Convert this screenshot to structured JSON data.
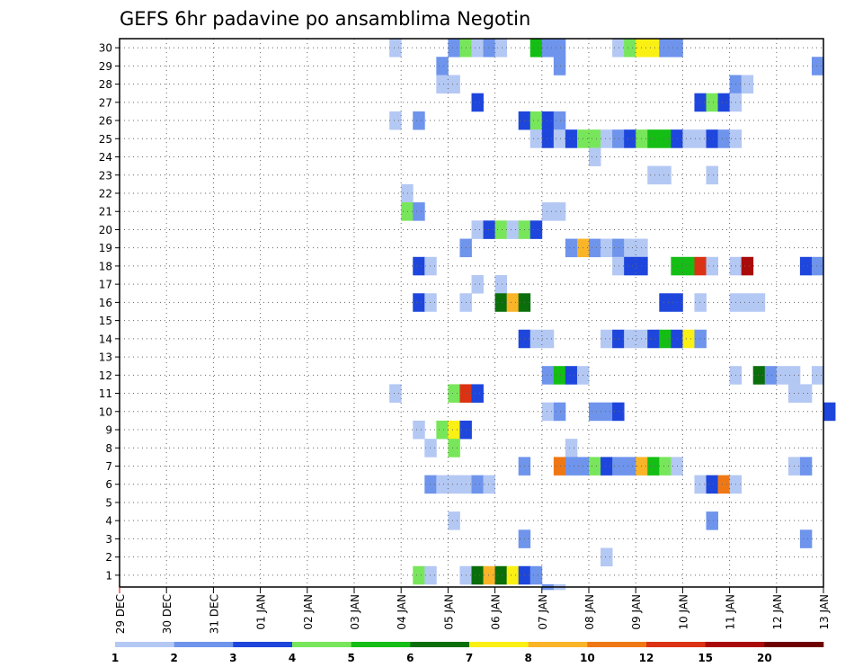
{
  "chart_data": {
    "type": "heatmap",
    "title": "GEFS 6hr padavine po ansamblima Negotin",
    "xlabel": "",
    "ylabel": "",
    "x_ticks": [
      "29 DEC",
      "30 DEC",
      "31 DEC",
      "01 JAN",
      "02 JAN",
      "03 JAN",
      "04 JAN",
      "05 JAN",
      "06 JAN",
      "07 JAN",
      "08 JAN",
      "09 JAN",
      "10 JAN",
      "11 JAN",
      "12 JAN",
      "13 JAN"
    ],
    "y_ticks": [
      "1",
      "2",
      "3",
      "4",
      "5",
      "6",
      "7",
      "8",
      "9",
      "10",
      "11",
      "12",
      "13",
      "14",
      "15",
      "16",
      "17",
      "18",
      "19",
      "20",
      "21",
      "22",
      "23",
      "24",
      "25",
      "26",
      "27",
      "28",
      "29",
      "30"
    ],
    "steps_per_day": 4,
    "levels": [
      1,
      2,
      3,
      4,
      5,
      6,
      7,
      8,
      10,
      12,
      15,
      20
    ],
    "colors": [
      "#b4c8f4",
      "#6e94ec",
      "#1e46dc",
      "#78e65a",
      "#14be14",
      "#0a6e0a",
      "#faf014",
      "#fab428",
      "#f07814",
      "#dc3214",
      "#aa0a0a",
      "#6e0000"
    ],
    "colorbar_labels": [
      "1",
      "2",
      "3",
      "4",
      "5",
      "6",
      "7",
      "8",
      "10",
      "12",
      "15",
      "20"
    ],
    "grid": true,
    "cells": [
      {
        "m": 30,
        "t": [
          [
            23,
            1
          ],
          [
            28,
            2
          ],
          [
            29,
            4
          ],
          [
            30,
            1
          ],
          [
            31,
            2
          ],
          [
            32,
            1
          ],
          [
            35,
            5
          ],
          [
            36,
            2
          ],
          [
            37,
            2
          ],
          [
            42,
            1
          ],
          [
            43,
            4
          ],
          [
            44,
            7
          ],
          [
            45,
            7
          ],
          [
            46,
            2
          ],
          [
            47,
            2
          ]
        ]
      },
      {
        "m": 29,
        "t": [
          [
            27,
            2
          ],
          [
            37,
            2
          ],
          [
            59,
            2
          ]
        ]
      },
      {
        "m": 28,
        "t": [
          [
            27,
            1
          ],
          [
            28,
            1
          ],
          [
            52,
            2
          ],
          [
            53,
            1
          ]
        ]
      },
      {
        "m": 27,
        "t": [
          [
            30,
            3
          ],
          [
            49,
            3
          ],
          [
            50,
            4
          ],
          [
            51,
            3
          ],
          [
            52,
            1
          ]
        ]
      },
      {
        "m": 26,
        "t": [
          [
            23,
            1
          ],
          [
            25,
            2
          ],
          [
            34,
            3
          ],
          [
            35,
            4
          ],
          [
            36,
            3
          ],
          [
            37,
            2
          ]
        ]
      },
      {
        "m": 25,
        "t": [
          [
            35,
            1
          ],
          [
            36,
            3
          ],
          [
            37,
            1
          ],
          [
            38,
            3
          ],
          [
            39,
            4
          ],
          [
            40,
            4
          ],
          [
            41,
            1
          ],
          [
            42,
            2
          ],
          [
            43,
            3
          ],
          [
            44,
            4
          ],
          [
            45,
            5
          ],
          [
            46,
            5
          ],
          [
            47,
            3
          ],
          [
            48,
            1
          ],
          [
            49,
            1
          ],
          [
            50,
            3
          ],
          [
            51,
            2
          ],
          [
            52,
            1
          ]
        ]
      },
      {
        "m": 24,
        "t": [
          [
            40,
            1
          ]
        ]
      },
      {
        "m": 23,
        "t": [
          [
            45,
            1
          ],
          [
            46,
            1
          ],
          [
            50,
            1
          ]
        ]
      },
      {
        "m": 22,
        "t": [
          [
            24,
            1
          ]
        ]
      },
      {
        "m": 21,
        "t": [
          [
            24,
            4
          ],
          [
            25,
            2
          ],
          [
            36,
            1
          ],
          [
            37,
            1
          ]
        ]
      },
      {
        "m": 20,
        "t": [
          [
            30,
            1
          ],
          [
            31,
            3
          ],
          [
            32,
            4
          ],
          [
            33,
            1
          ],
          [
            34,
            4
          ],
          [
            35,
            3
          ]
        ]
      },
      {
        "m": 19,
        "t": [
          [
            29,
            2
          ],
          [
            38,
            2
          ],
          [
            39,
            8
          ],
          [
            40,
            2
          ],
          [
            41,
            1
          ],
          [
            42,
            2
          ],
          [
            43,
            1
          ],
          [
            44,
            1
          ]
        ]
      },
      {
        "m": 18,
        "t": [
          [
            25,
            3
          ],
          [
            26,
            1
          ],
          [
            42,
            1
          ],
          [
            43,
            3
          ],
          [
            44,
            3
          ],
          [
            47,
            5
          ],
          [
            48,
            5
          ],
          [
            49,
            10
          ],
          [
            50,
            1
          ],
          [
            52,
            1
          ],
          [
            53,
            11
          ],
          [
            58,
            3
          ],
          [
            59,
            2
          ]
        ]
      },
      {
        "m": 17,
        "t": [
          [
            30,
            1
          ],
          [
            32,
            1
          ]
        ]
      },
      {
        "m": 16,
        "t": [
          [
            25,
            3
          ],
          [
            26,
            1
          ],
          [
            29,
            1
          ],
          [
            32,
            6
          ],
          [
            33,
            8
          ],
          [
            34,
            6
          ],
          [
            46,
            3
          ],
          [
            47,
            3
          ],
          [
            49,
            1
          ],
          [
            52,
            1
          ],
          [
            53,
            1
          ],
          [
            54,
            1
          ]
        ]
      },
      {
        "m": 14,
        "t": [
          [
            34,
            3
          ],
          [
            35,
            1
          ],
          [
            36,
            1
          ],
          [
            41,
            1
          ],
          [
            42,
            3
          ],
          [
            43,
            1
          ],
          [
            44,
            1
          ],
          [
            45,
            3
          ],
          [
            46,
            5
          ],
          [
            47,
            3
          ],
          [
            48,
            7
          ],
          [
            49,
            2
          ]
        ]
      },
      {
        "m": 12,
        "t": [
          [
            36,
            2
          ],
          [
            37,
            5
          ],
          [
            38,
            3
          ],
          [
            39,
            1
          ],
          [
            52,
            1
          ],
          [
            54,
            6
          ],
          [
            55,
            2
          ],
          [
            56,
            1
          ],
          [
            57,
            1
          ],
          [
            59,
            1
          ]
        ]
      },
      {
        "m": 11,
        "t": [
          [
            23,
            1
          ],
          [
            28,
            4
          ],
          [
            29,
            10
          ],
          [
            30,
            3
          ],
          [
            57,
            1
          ],
          [
            58,
            1
          ]
        ]
      },
      {
        "m": 10,
        "t": [
          [
            36,
            1
          ],
          [
            37,
            2
          ],
          [
            40,
            2
          ],
          [
            41,
            2
          ],
          [
            42,
            3
          ],
          [
            60,
            3
          ]
        ]
      },
      {
        "m": 9,
        "t": [
          [
            25,
            1
          ],
          [
            27,
            4
          ],
          [
            28,
            7
          ],
          [
            29,
            3
          ]
        ]
      },
      {
        "m": 8,
        "t": [
          [
            26,
            1
          ],
          [
            28,
            4
          ],
          [
            38,
            1
          ]
        ]
      },
      {
        "m": 7,
        "t": [
          [
            34,
            2
          ],
          [
            37,
            9
          ],
          [
            38,
            2
          ],
          [
            39,
            2
          ],
          [
            40,
            4
          ],
          [
            41,
            3
          ],
          [
            42,
            2
          ],
          [
            43,
            2
          ],
          [
            44,
            8
          ],
          [
            45,
            5
          ],
          [
            46,
            4
          ],
          [
            47,
            1
          ],
          [
            57,
            1
          ],
          [
            58,
            2
          ]
        ]
      },
      {
        "m": 6,
        "t": [
          [
            26,
            2
          ],
          [
            27,
            1
          ],
          [
            28,
            1
          ],
          [
            29,
            1
          ],
          [
            30,
            2
          ],
          [
            31,
            1
          ],
          [
            49,
            1
          ],
          [
            50,
            3
          ],
          [
            51,
            9
          ],
          [
            52,
            1
          ]
        ]
      },
      {
        "m": 4,
        "t": [
          [
            28,
            1
          ],
          [
            50,
            2
          ]
        ]
      },
      {
        "m": 3,
        "t": [
          [
            34,
            2
          ],
          [
            58,
            2
          ]
        ]
      },
      {
        "m": 2,
        "t": [
          [
            41,
            1
          ]
        ]
      },
      {
        "m": 1,
        "t": [
          [
            25,
            4
          ],
          [
            26,
            1
          ],
          [
            29,
            1
          ],
          [
            30,
            6
          ],
          [
            31,
            8
          ],
          [
            32,
            6
          ],
          [
            33,
            7
          ],
          [
            34,
            3
          ],
          [
            35,
            2
          ]
        ]
      },
      {
        "m": 0,
        "t": [
          [
            36,
            2
          ],
          [
            37,
            1
          ]
        ]
      }
    ]
  }
}
